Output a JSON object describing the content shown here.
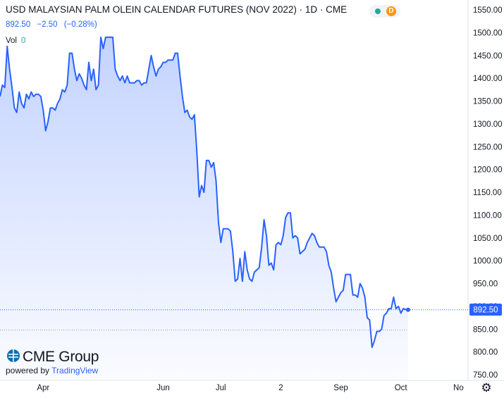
{
  "header": {
    "title": "USD MALAYSIAN PALM OLEIN CALENDAR FUTURES (NOV 2022) · 1D · CME",
    "last_price": "892.50",
    "change": "−2.50",
    "change_pct": "(−0.28%)",
    "vol_label": "Vol",
    "vol_value": "0",
    "status_dot_color": "#22ab94",
    "status_badge": "D"
  },
  "branding": {
    "logo_text": "CME Group",
    "powered_by": "powered by",
    "tradingview": "TradingView"
  },
  "price_label": "892.50",
  "settings_icon": "gear-icon",
  "chart_data": {
    "type": "area",
    "title": "USD MALAYSIAN PALM OLEIN CALENDAR FUTURES (NOV 2022)",
    "xlabel": "",
    "ylabel": "",
    "ylim": [
      730,
      1560
    ],
    "y_ticks": [
      750,
      800,
      850,
      900,
      950,
      1000,
      1050,
      1100,
      1150,
      1200,
      1250,
      1300,
      1350,
      1400,
      1450,
      1500,
      1550
    ],
    "x_ticks": [
      {
        "label": "Apr",
        "x": 18
      },
      {
        "label": "Jun",
        "x": 68
      },
      {
        "label": "Jul",
        "x": 92
      },
      {
        "label": "2",
        "x": 117
      },
      {
        "label": "Sep",
        "x": 142
      },
      {
        "label": "Oct",
        "x": 167
      },
      {
        "label": "No",
        "x": 191
      }
    ],
    "xlim": [
      0,
      195
    ],
    "line_color": "#2962ff",
    "fill_color": "#2962ff",
    "last_value": 892.5,
    "reference_level": 848,
    "series": [
      {
        "values": [
          [
            0,
            1360
          ],
          [
            1,
            1385
          ],
          [
            2,
            1380
          ],
          [
            3,
            1470
          ],
          [
            4,
            1420
          ],
          [
            5,
            1380
          ],
          [
            6,
            1335
          ],
          [
            7,
            1325
          ],
          [
            8,
            1370
          ],
          [
            9,
            1345
          ],
          [
            10,
            1335
          ],
          [
            11,
            1365
          ],
          [
            12,
            1355
          ],
          [
            13,
            1370
          ],
          [
            14,
            1360
          ],
          [
            15,
            1365
          ],
          [
            16,
            1365
          ],
          [
            17,
            1360
          ],
          [
            18,
            1330
          ],
          [
            19,
            1285
          ],
          [
            20,
            1305
          ],
          [
            21,
            1335
          ],
          [
            22,
            1335
          ],
          [
            23,
            1330
          ],
          [
            24,
            1345
          ],
          [
            25,
            1355
          ],
          [
            26,
            1375
          ],
          [
            27,
            1370
          ],
          [
            28,
            1385
          ],
          [
            29,
            1455
          ],
          [
            30,
            1455
          ],
          [
            31,
            1420
          ],
          [
            32,
            1395
          ],
          [
            33,
            1410
          ],
          [
            34,
            1400
          ],
          [
            35,
            1385
          ],
          [
            36,
            1375
          ],
          [
            37,
            1435
          ],
          [
            38,
            1395
          ],
          [
            39,
            1420
          ],
          [
            40,
            1375
          ],
          [
            41,
            1385
          ],
          [
            42,
            1490
          ],
          [
            43,
            1465
          ],
          [
            44,
            1490
          ],
          [
            45,
            1490
          ],
          [
            46,
            1490
          ],
          [
            47,
            1490
          ],
          [
            48,
            1420
          ],
          [
            49,
            1405
          ],
          [
            50,
            1395
          ],
          [
            51,
            1405
          ],
          [
            52,
            1390
          ],
          [
            53,
            1405
          ],
          [
            54,
            1390
          ],
          [
            55,
            1390
          ],
          [
            56,
            1390
          ],
          [
            57,
            1395
          ],
          [
            58,
            1395
          ],
          [
            59,
            1385
          ],
          [
            60,
            1390
          ],
          [
            61,
            1390
          ],
          [
            62,
            1420
          ],
          [
            63,
            1450
          ],
          [
            64,
            1425
          ],
          [
            65,
            1405
          ],
          [
            66,
            1420
          ],
          [
            67,
            1425
          ],
          [
            68,
            1435
          ],
          [
            69,
            1435
          ],
          [
            70,
            1440
          ],
          [
            71,
            1440
          ],
          [
            72,
            1440
          ],
          [
            73,
            1455
          ],
          [
            74,
            1455
          ],
          [
            75,
            1405
          ],
          [
            76,
            1360
          ],
          [
            77,
            1325
          ],
          [
            78,
            1330
          ],
          [
            79,
            1315
          ],
          [
            80,
            1310
          ],
          [
            81,
            1320
          ],
          [
            82,
            1240
          ],
          [
            83,
            1140
          ],
          [
            84,
            1165
          ],
          [
            85,
            1150
          ],
          [
            86,
            1220
          ],
          [
            87,
            1220
          ],
          [
            88,
            1205
          ],
          [
            89,
            1215
          ],
          [
            90,
            1175
          ],
          [
            91,
            1085
          ],
          [
            92,
            1040
          ],
          [
            93,
            1070
          ],
          [
            94,
            1070
          ],
          [
            95,
            1070
          ],
          [
            96,
            1065
          ],
          [
            97,
            1020
          ],
          [
            98,
            955
          ],
          [
            99,
            960
          ],
          [
            100,
            1005
          ],
          [
            101,
            955
          ],
          [
            102,
            1020
          ],
          [
            103,
            980
          ],
          [
            104,
            960
          ],
          [
            105,
            955
          ],
          [
            106,
            975
          ],
          [
            107,
            980
          ],
          [
            108,
            985
          ],
          [
            109,
            1030
          ],
          [
            110,
            1090
          ],
          [
            111,
            1055
          ],
          [
            112,
            990
          ],
          [
            113,
            995
          ],
          [
            114,
            980
          ],
          [
            115,
            1035
          ],
          [
            116,
            1040
          ],
          [
            117,
            1035
          ],
          [
            118,
            1055
          ],
          [
            119,
            1095
          ],
          [
            120,
            1105
          ],
          [
            121,
            1105
          ],
          [
            122,
            1050
          ],
          [
            123,
            1055
          ],
          [
            124,
            1050
          ],
          [
            125,
            1015
          ],
          [
            126,
            1020
          ],
          [
            127,
            1025
          ],
          [
            128,
            1040
          ],
          [
            129,
            1050
          ],
          [
            130,
            1060
          ],
          [
            131,
            1055
          ],
          [
            132,
            1040
          ],
          [
            133,
            1030
          ],
          [
            134,
            1030
          ],
          [
            135,
            1030
          ],
          [
            136,
            1020
          ],
          [
            137,
            990
          ],
          [
            138,
            975
          ],
          [
            139,
            940
          ],
          [
            140,
            910
          ],
          [
            141,
            920
          ],
          [
            142,
            930
          ],
          [
            143,
            935
          ],
          [
            144,
            970
          ],
          [
            145,
            970
          ],
          [
            146,
            970
          ],
          [
            147,
            925
          ],
          [
            148,
            925
          ],
          [
            149,
            920
          ],
          [
            150,
            950
          ],
          [
            151,
            940
          ],
          [
            152,
            920
          ],
          [
            153,
            875
          ],
          [
            154,
            870
          ],
          [
            155,
            810
          ],
          [
            156,
            825
          ],
          [
            157,
            845
          ],
          [
            158,
            845
          ],
          [
            159,
            850
          ],
          [
            160,
            880
          ],
          [
            161,
            885
          ],
          [
            162,
            895
          ],
          [
            163,
            895
          ],
          [
            164,
            920
          ],
          [
            165,
            895
          ],
          [
            166,
            900
          ],
          [
            167,
            885
          ],
          [
            168,
            895
          ],
          [
            169,
            893
          ],
          [
            170,
            892.5
          ]
        ]
      }
    ]
  }
}
